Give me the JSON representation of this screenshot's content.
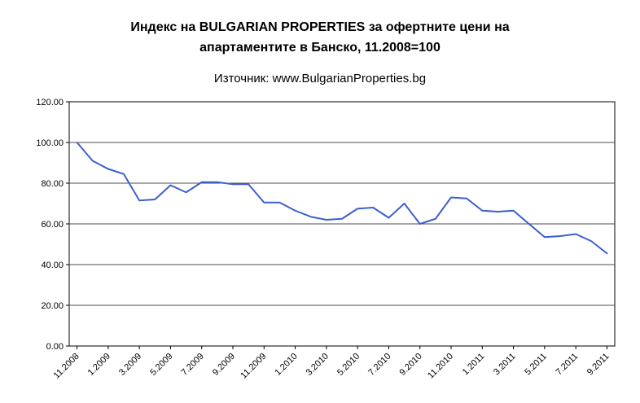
{
  "chart_data": {
    "type": "line",
    "title_lines": [
      "Индекс на BULGARIAN PROPERTIES за офертните цени на",
      "апартаментите в Банско, 11.2008=100"
    ],
    "subtitle": "Източник: www.BulgarianProperties.bg",
    "xlabel": "",
    "ylabel": "",
    "legend": "none",
    "grid": "horizontal",
    "ylim": [
      0,
      120
    ],
    "ytick_step": 20,
    "y_tick_labels": [
      "0.00",
      "20.00",
      "40.00",
      "60.00",
      "80.00",
      "100.00",
      "120.00"
    ],
    "x": [
      "11.2008",
      "12.2008",
      "1.2009",
      "2.2009",
      "3.2009",
      "4.2009",
      "5.2009",
      "6.2009",
      "7.2009",
      "8.2009",
      "9.2009",
      "10.2009",
      "11.2009",
      "12.2009",
      "1.2010",
      "2.2010",
      "3.2010",
      "4.2010",
      "5.2010",
      "6.2010",
      "7.2010",
      "8.2010",
      "9.2010",
      "10.2010",
      "11.2010",
      "12.2010",
      "1.2011",
      "2.2011",
      "3.2011",
      "4.2011",
      "5.2011",
      "6.2011",
      "7.2011",
      "8.2011",
      "9.2011"
    ],
    "values": [
      100,
      91,
      87,
      84.5,
      71.5,
      72,
      79,
      75.5,
      80.5,
      80.5,
      79.5,
      79.5,
      70.5,
      70.5,
      66.5,
      63.5,
      62,
      62.5,
      67.5,
      68,
      63,
      70,
      60,
      62.5,
      73,
      72.5,
      66.5,
      66,
      66.5,
      60,
      53.5,
      54,
      55,
      51.5,
      45.5
    ],
    "x_tick_labels": [
      "11.2008",
      "1.2009",
      "3.2009",
      "5.2009",
      "7.2009",
      "9.2009",
      "11.2009",
      "1.2010",
      "3.2010",
      "5.2010",
      "7.2010",
      "9.2010",
      "11.2010",
      "1.2011",
      "3.2011",
      "5.2011",
      "7.2011",
      "9.2011"
    ],
    "x_tick_every": 2,
    "line_color": "#3B5FD0",
    "axis_color": "#000000",
    "gridline_color": "#4D4D4D",
    "background": "#FFFFFF"
  }
}
